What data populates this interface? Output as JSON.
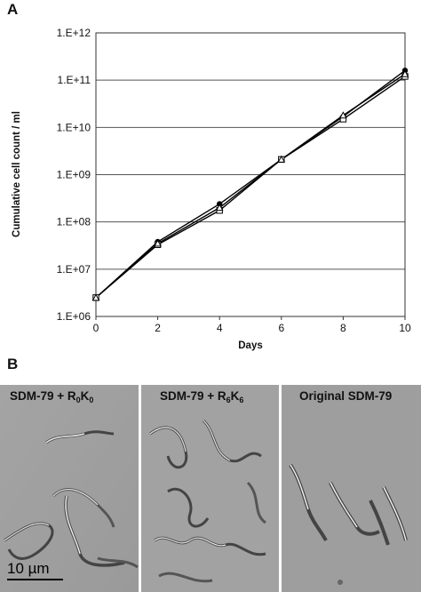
{
  "panels": {
    "a": "A",
    "b": "B"
  },
  "chart_data": {
    "type": "line",
    "xlabel": "Days",
    "ylabel": "Cumulative cell count / ml",
    "xlim": [
      0,
      10
    ],
    "ylim": [
      1000000,
      1000000000000
    ],
    "yscale": "log",
    "grid": "horizontal",
    "x_ticks": [
      "0",
      "2",
      "4",
      "6",
      "8",
      "10"
    ],
    "y_ticks": [
      "1.E+06",
      "1.E+07",
      "1.E+08",
      "1.E+09",
      "1.E+10",
      "1.E+11",
      "1.E+12"
    ],
    "series": [
      {
        "marker": "filled-circle",
        "color": "#000000",
        "x": [
          0,
          2,
          4,
          6,
          8,
          10
        ],
        "y": [
          2500000,
          38000000,
          240000000,
          2100000000,
          17000000000,
          160000000000
        ]
      },
      {
        "marker": "open-square",
        "color": "#000000",
        "x": [
          0,
          2,
          4,
          6,
          8,
          10
        ],
        "y": [
          2500000,
          33000000,
          175000000,
          2100000000,
          15000000000,
          120000000000
        ]
      },
      {
        "marker": "open-triangle",
        "color": "#000000",
        "x": [
          0,
          2,
          4,
          6,
          8,
          10
        ],
        "y": [
          2500000,
          35000000,
          200000000,
          2100000000,
          18000000000,
          135000000000
        ]
      }
    ]
  },
  "micrographs": [
    {
      "label_prefix": "SDM-79 + R",
      "sub1": "0",
      "mid": "K",
      "sub2": "0"
    },
    {
      "label_prefix": "SDM-79 + R",
      "sub1": "6",
      "mid": "K",
      "sub2": "6"
    },
    {
      "label": "Original SDM-79"
    }
  ],
  "scale_bar": "10 µm"
}
